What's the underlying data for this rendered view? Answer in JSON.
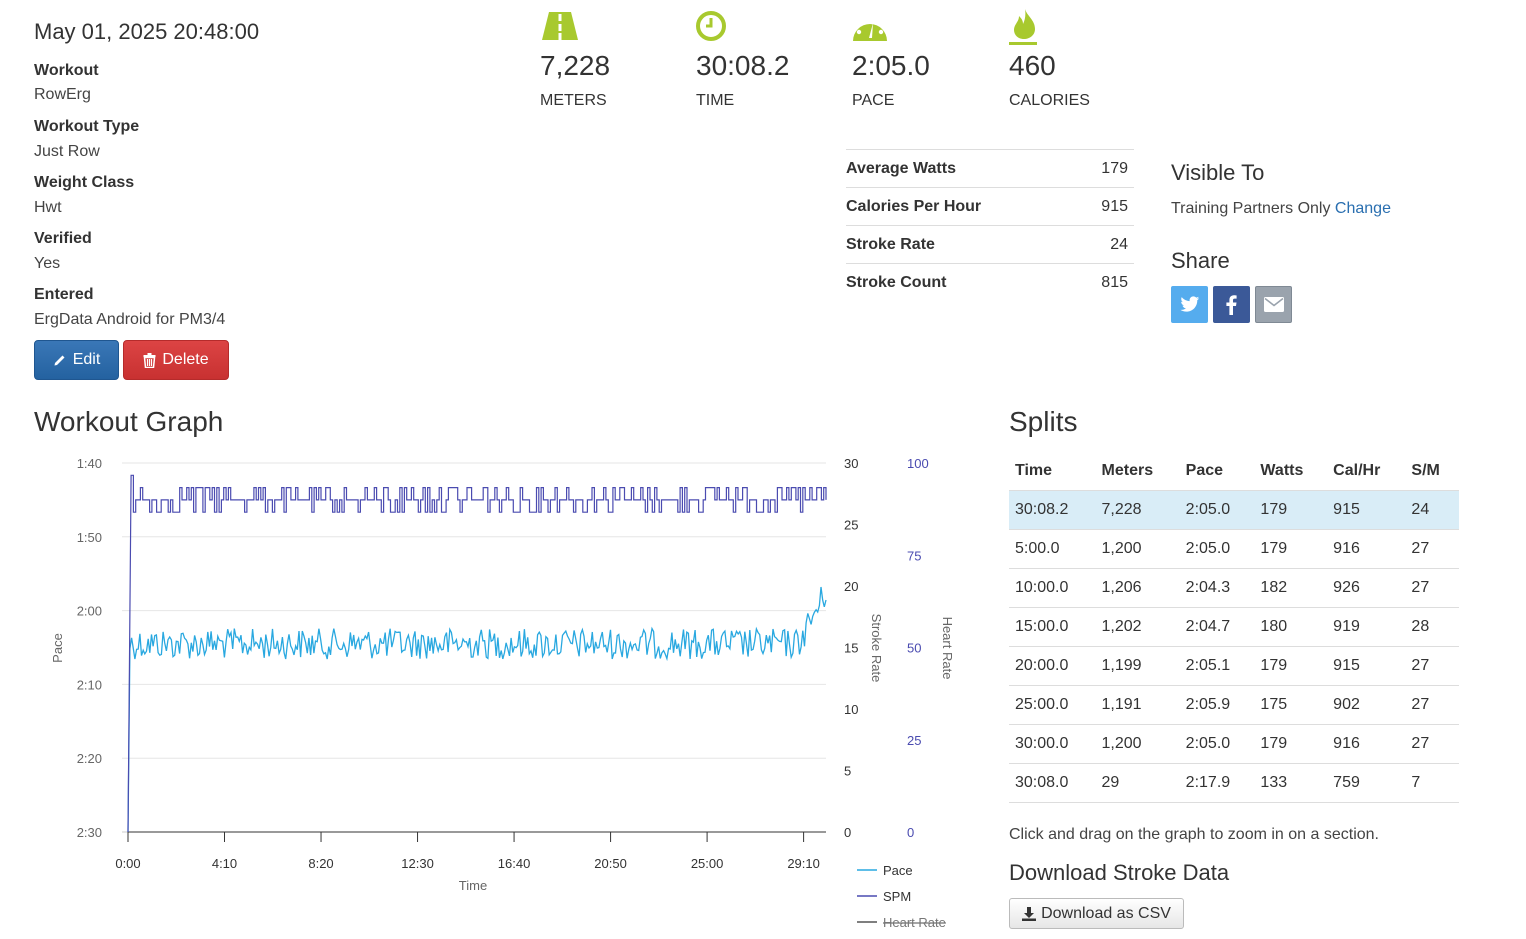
{
  "workout": {
    "datetime": "May 01, 2025 20:48:00",
    "details": [
      {
        "label": "Workout",
        "value": "RowErg"
      },
      {
        "label": "Workout Type",
        "value": "Just Row"
      },
      {
        "label": "Weight Class",
        "value": "Hwt"
      },
      {
        "label": "Verified",
        "value": "Yes"
      },
      {
        "label": "Entered",
        "value": "ErgData Android for PM3/4"
      }
    ],
    "edit_label": "Edit",
    "delete_label": "Delete"
  },
  "stats": [
    {
      "value": "7,228",
      "label": "METERS",
      "icon": "road-icon"
    },
    {
      "value": "30:08.2",
      "label": "TIME",
      "icon": "clock-icon"
    },
    {
      "value": "2:05.0",
      "label": "PACE",
      "icon": "speedometer-icon"
    },
    {
      "value": "460",
      "label": "CALORIES",
      "icon": "flame-icon"
    }
  ],
  "summary": [
    {
      "label": "Average Watts",
      "value": "179"
    },
    {
      "label": "Calories Per Hour",
      "value": "915"
    },
    {
      "label": "Stroke Rate",
      "value": "24"
    },
    {
      "label": "Stroke Count",
      "value": "815"
    }
  ],
  "visibility": {
    "title": "Visible To",
    "text": "Training Partners Only",
    "change_label": "Change"
  },
  "share": {
    "title": "Share",
    "buttons": [
      {
        "icon": "twitter-icon",
        "color": "#55acee"
      },
      {
        "icon": "facebook-icon",
        "color": "#3b5998"
      },
      {
        "icon": "email-icon",
        "color": "#9aa3ad"
      }
    ]
  },
  "graph": {
    "title": "Workout Graph",
    "hint": "Click and drag on the graph to zoom in on a section."
  },
  "chart_data": {
    "type": "line",
    "xlabel": "Time",
    "x_ticks": [
      "0:00",
      "4:10",
      "8:20",
      "12:30",
      "16:40",
      "20:50",
      "25:00",
      "29:10"
    ],
    "xlim": [
      0,
      1808
    ],
    "axes": {
      "pace": {
        "label": "Pace",
        "ticks": [
          "1:40",
          "1:50",
          "2:00",
          "2:10",
          "2:20",
          "2:30"
        ],
        "range_seconds": [
          100,
          150
        ],
        "inverted": true
      },
      "stroke_rate": {
        "label": "Stroke Rate",
        "ticks": [
          "30",
          "25",
          "20",
          "15",
          "10",
          "5",
          "0"
        ],
        "range": [
          0,
          30
        ]
      },
      "heart_rate": {
        "label": "Heart Rate",
        "ticks": [
          "100",
          "75",
          "50",
          "25",
          "0"
        ],
        "range": [
          0,
          100
        ]
      }
    },
    "series": [
      {
        "name": "Pace",
        "color": "#29a8e0",
        "axis": "pace",
        "baseline_seconds": 124.5,
        "noise_seconds": 1.3,
        "end_seconds": 117.5
      },
      {
        "name": "SPM",
        "color": "#4a4bb0",
        "axis": "stroke_rate",
        "baseline": 27,
        "noise": 1,
        "start": 0
      },
      {
        "name": "Heart Rate",
        "color": "#555555",
        "axis": "heart_rate",
        "hidden": true
      }
    ],
    "legend_position": "bottom-right",
    "grid": true
  },
  "splits": {
    "title": "Splits",
    "columns": [
      "Time",
      "Meters",
      "Pace",
      "Watts",
      "Cal/Hr",
      "S/M"
    ],
    "rows": [
      [
        "30:08.2",
        "7,228",
        "2:05.0",
        "179",
        "915",
        "24"
      ],
      [
        "5:00.0",
        "1,200",
        "2:05.0",
        "179",
        "916",
        "27"
      ],
      [
        "10:00.0",
        "1,206",
        "2:04.3",
        "182",
        "926",
        "27"
      ],
      [
        "15:00.0",
        "1,202",
        "2:04.7",
        "180",
        "919",
        "28"
      ],
      [
        "20:00.0",
        "1,199",
        "2:05.1",
        "179",
        "915",
        "27"
      ],
      [
        "25:00.0",
        "1,191",
        "2:05.9",
        "175",
        "902",
        "27"
      ],
      [
        "30:00.0",
        "1,200",
        "2:05.0",
        "179",
        "916",
        "27"
      ],
      [
        "30:08.0",
        "29",
        "2:17.9",
        "133",
        "759",
        "7"
      ]
    ]
  },
  "download": {
    "title": "Download Stroke Data",
    "button_label": "Download as CSV"
  }
}
